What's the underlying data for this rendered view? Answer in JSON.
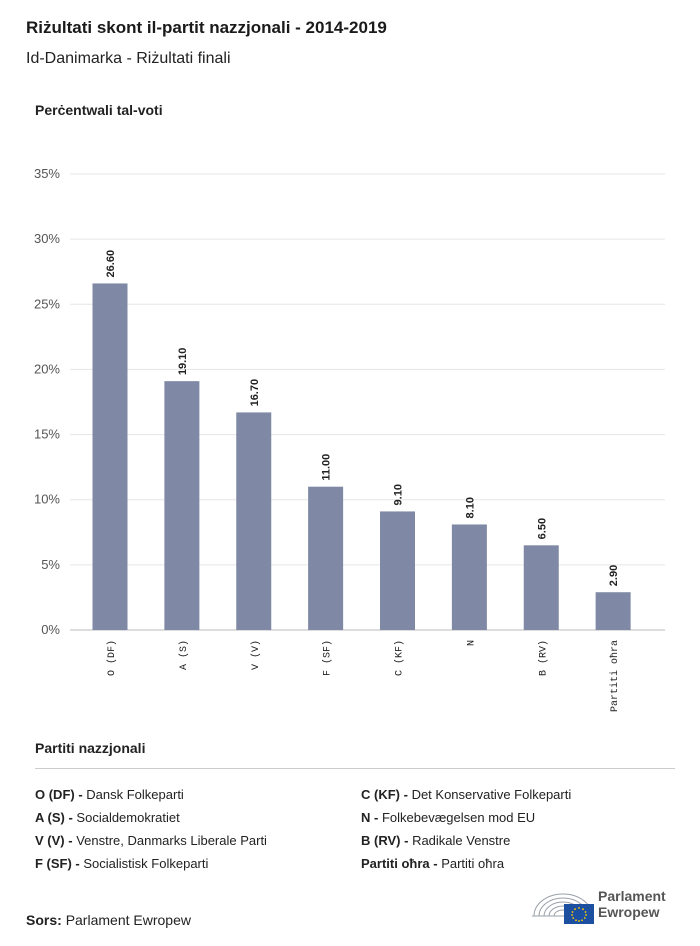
{
  "header": {
    "title": "Riżultati skont il-partit nazzjonali - 2014-2019",
    "subtitle": "Id-Danimarka - Riżultati finali"
  },
  "chart_data": {
    "type": "bar",
    "ylabel": "Perċentwali tal-voti",
    "categories": [
      "O (DF)",
      "A (S)",
      "V (V)",
      "F (SF)",
      "C (KF)",
      "N",
      "B (RV)",
      "Partiti oħra"
    ],
    "values": [
      26.6,
      19.1,
      16.7,
      11.0,
      9.1,
      8.1,
      6.5,
      2.9
    ],
    "value_labels": [
      "26.60",
      "19.10",
      "16.70",
      "11.00",
      "9.10",
      "8.10",
      "6.50",
      "2.90"
    ],
    "ylim": [
      0,
      35
    ],
    "yticks": [
      "0%",
      "5%",
      "10%",
      "15%",
      "20%",
      "25%",
      "30%",
      "35%"
    ],
    "grid": true,
    "bar_color": "#7f88a4"
  },
  "legend": {
    "title": "Partiti nazzjonali",
    "items": [
      {
        "code": "O (DF) -",
        "name": "Dansk Folkeparti"
      },
      {
        "code": "A (S) -",
        "name": "Socialdemokratiet"
      },
      {
        "code": "V (V) -",
        "name": "Venstre, Danmarks Liberale Parti"
      },
      {
        "code": "F (SF) -",
        "name": "Socialistisk Folkeparti"
      },
      {
        "code": "C (KF) -",
        "name": "Det Konservative Folkeparti"
      },
      {
        "code": "N -",
        "name": "Folkebevægelsen mod EU"
      },
      {
        "code": "B (RV) -",
        "name": "Radikale Venstre"
      },
      {
        "code": "Partiti oħra -",
        "name": "Partiti oħra"
      }
    ]
  },
  "footer": {
    "source_label": "Sors:",
    "source_value": "Parlament Ewropew",
    "logo_line1": "Parlament",
    "logo_line2": "Ewropew"
  }
}
